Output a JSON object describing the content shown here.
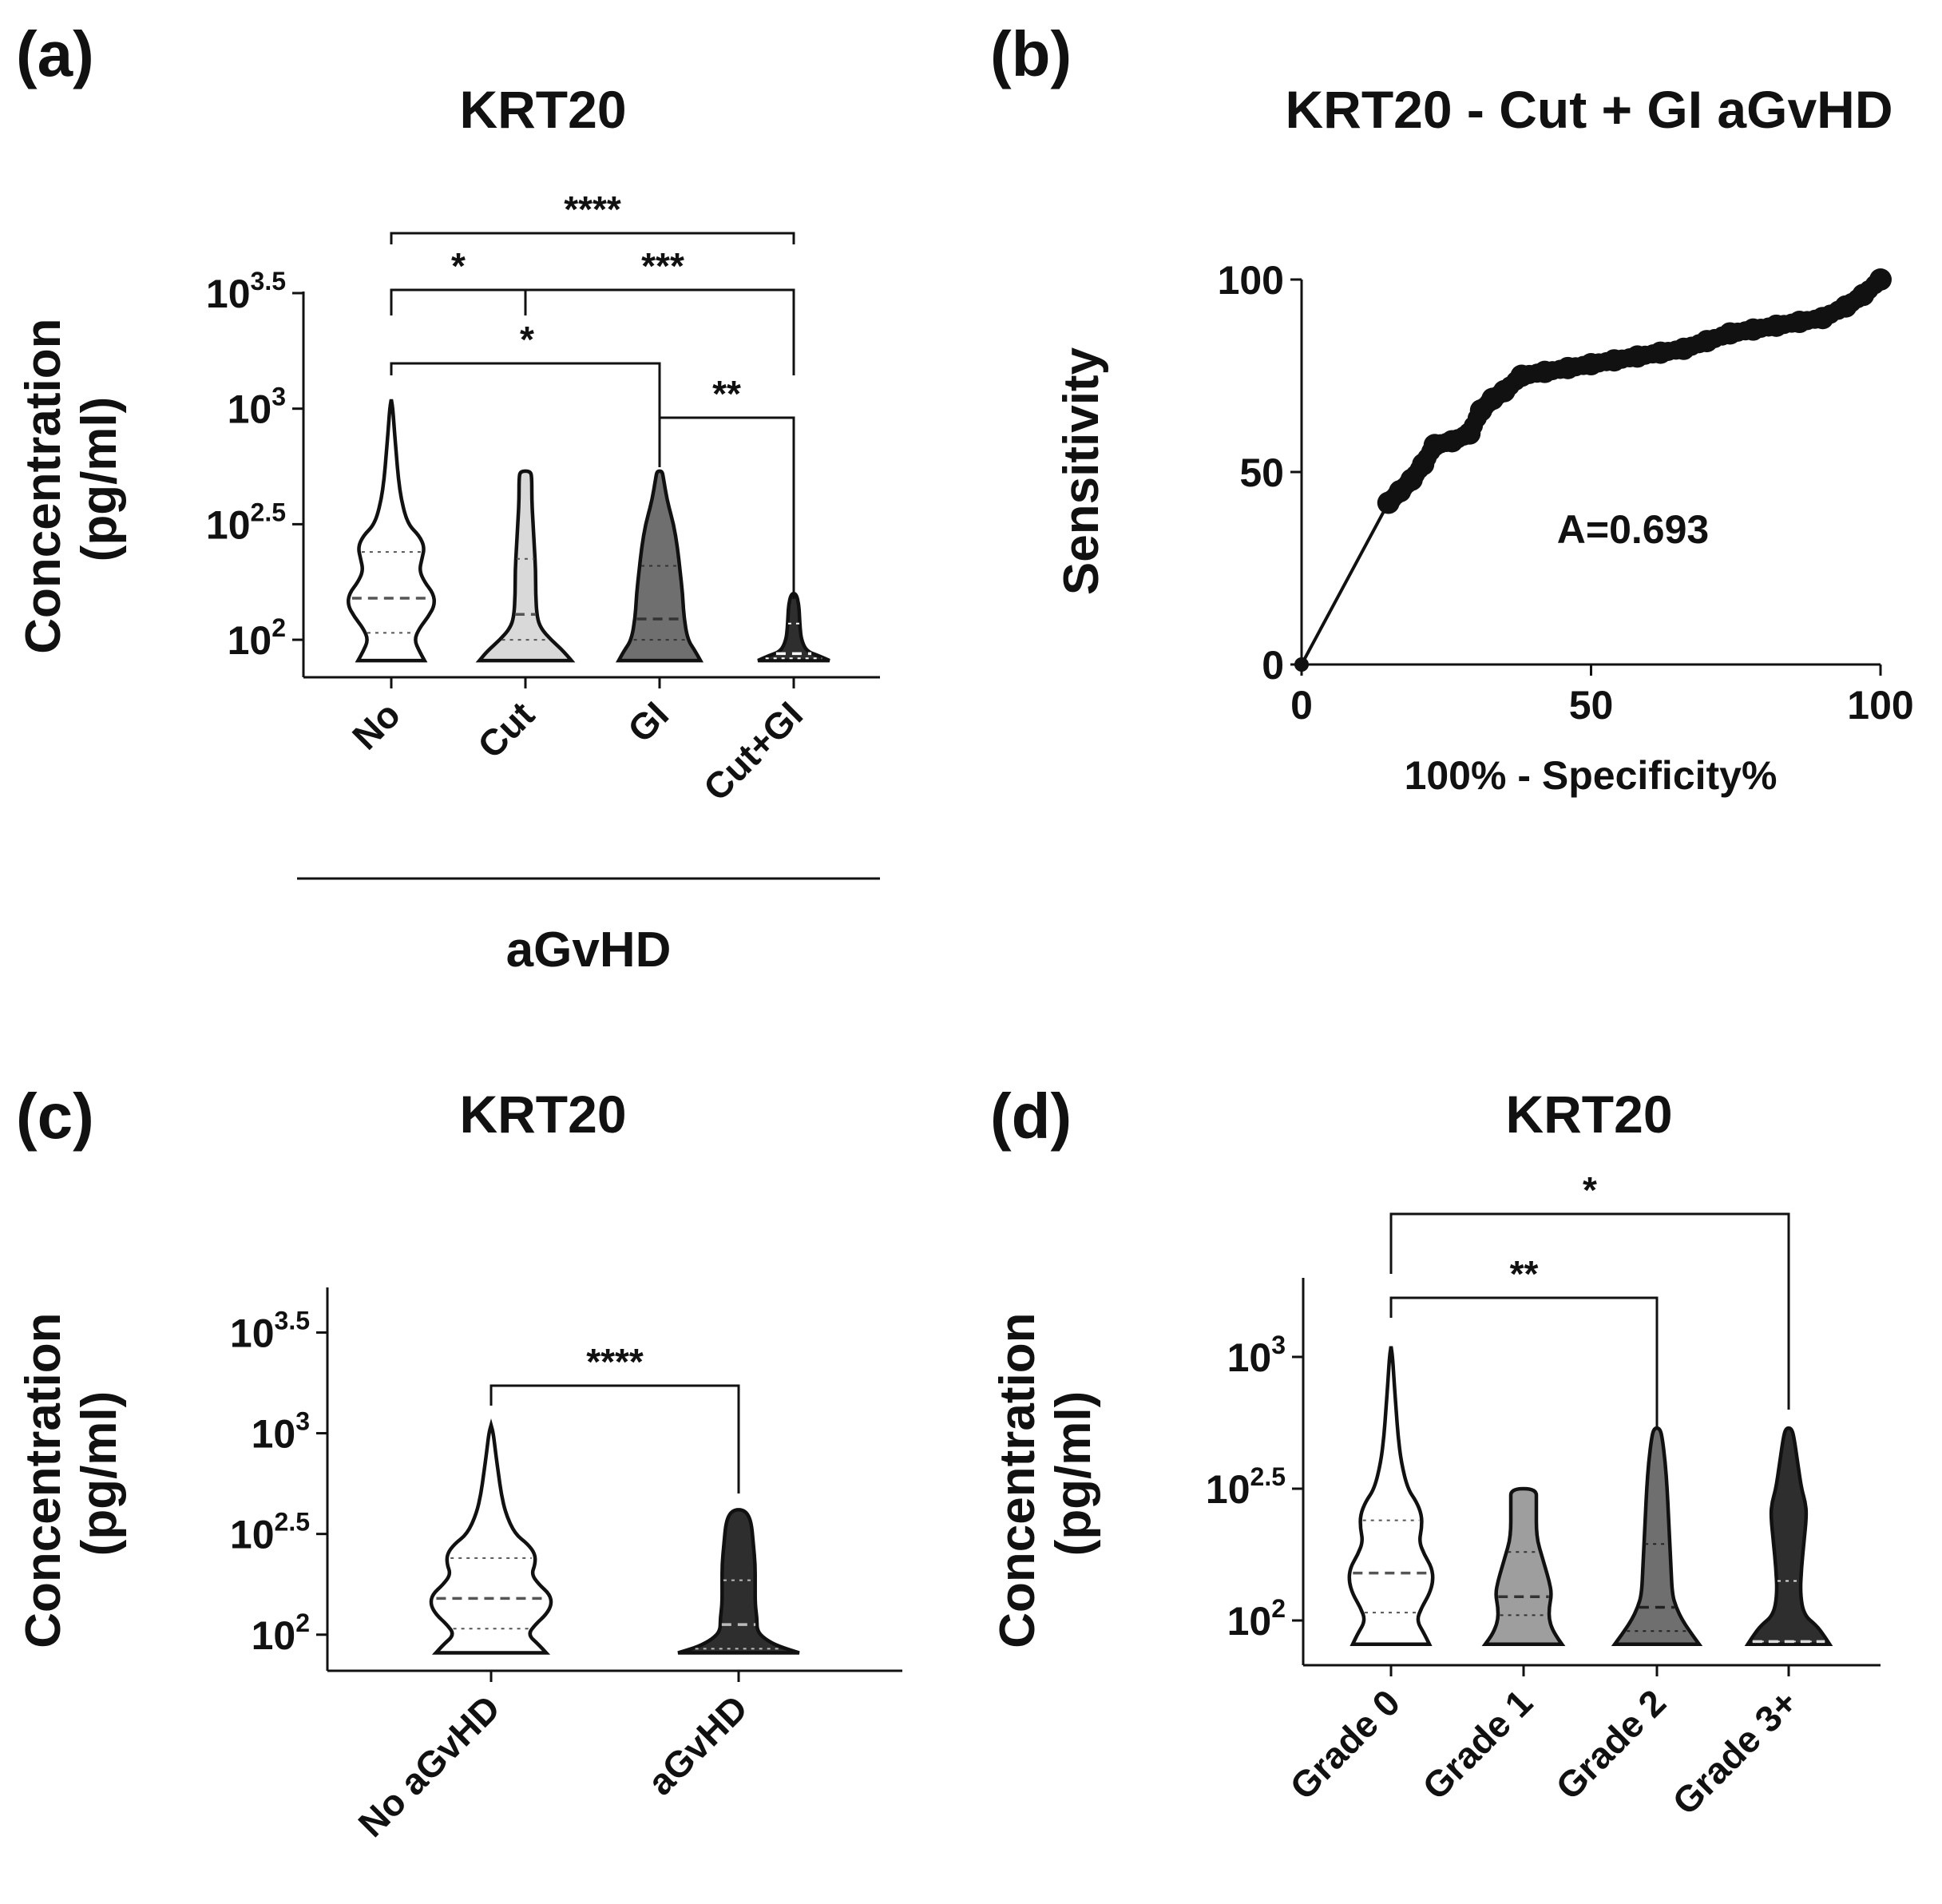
{
  "chart_data": [
    {
      "panel": "(a)",
      "type": "violin",
      "title": "KRT20",
      "ylabel": "Concentration\n(pg/ml)",
      "xlabel": "aGvHD",
      "yscale": "log10",
      "ylim": [
        1.9,
        3.5
      ],
      "yticks": [
        {
          "base": "10",
          "exp": "3.5",
          "value": 3.5
        },
        {
          "base": "10",
          "exp": "3",
          "value": 3.0
        },
        {
          "base": "10",
          "exp": "2.5",
          "value": 2.5
        },
        {
          "base": "10",
          "exp": "2",
          "value": 2.0
        }
      ],
      "categories": [
        "No",
        "Cut",
        "GI",
        "Cut+GI"
      ],
      "violins": [
        {
          "name": "No",
          "fill": "#ffffff",
          "min": 1.91,
          "max": 3.04,
          "q1": 2.03,
          "median": 2.18,
          "q3": 2.38,
          "line_color": "#555555",
          "profile": [
            [
              1.91,
              0.26
            ],
            [
              1.95,
              0.22
            ],
            [
              2.0,
              0.18
            ],
            [
              2.05,
              0.22
            ],
            [
              2.1,
              0.29
            ],
            [
              2.15,
              0.34
            ],
            [
              2.2,
              0.33
            ],
            [
              2.25,
              0.26
            ],
            [
              2.3,
              0.22
            ],
            [
              2.35,
              0.24
            ],
            [
              2.4,
              0.26
            ],
            [
              2.45,
              0.22
            ],
            [
              2.5,
              0.13
            ],
            [
              2.6,
              0.08
            ],
            [
              2.7,
              0.055
            ],
            [
              2.8,
              0.04
            ],
            [
              2.9,
              0.025
            ],
            [
              3.0,
              0.012
            ],
            [
              3.04,
              0
            ]
          ]
        },
        {
          "name": "Cut",
          "fill": "#d9d9d9",
          "min": 1.91,
          "max": 2.73,
          "q1": 2.0,
          "median": 2.11,
          "q3": 2.35,
          "line_color": "#555555",
          "profile": [
            [
              1.91,
              0.36
            ],
            [
              1.95,
              0.3
            ],
            [
              2.0,
              0.2
            ],
            [
              2.05,
              0.12
            ],
            [
              2.1,
              0.09
            ],
            [
              2.2,
              0.08
            ],
            [
              2.3,
              0.08
            ],
            [
              2.4,
              0.07
            ],
            [
              2.5,
              0.06
            ],
            [
              2.6,
              0.05
            ],
            [
              2.7,
              0.05
            ],
            [
              2.73,
              0.04
            ]
          ]
        },
        {
          "name": "GI",
          "fill": "#6f6f6f",
          "min": 1.91,
          "max": 2.73,
          "q1": 2.0,
          "median": 2.09,
          "q3": 2.32,
          "line_color": "#333333",
          "profile": [
            [
              1.91,
              0.32
            ],
            [
              1.95,
              0.28
            ],
            [
              2.0,
              0.22
            ],
            [
              2.1,
              0.19
            ],
            [
              2.2,
              0.18
            ],
            [
              2.3,
              0.16
            ],
            [
              2.4,
              0.14
            ],
            [
              2.5,
              0.11
            ],
            [
              2.6,
              0.06
            ],
            [
              2.7,
              0.03
            ],
            [
              2.73,
              0.02
            ]
          ]
        },
        {
          "name": "Cut+GI",
          "fill": "#2e2e2e",
          "min": 1.91,
          "max": 2.2,
          "q1": 1.92,
          "median": 1.94,
          "q3": 2.07,
          "line_color": "#ffffff",
          "profile": [
            [
              1.91,
              0.28
            ],
            [
              1.93,
              0.2
            ],
            [
              1.95,
              0.1
            ],
            [
              2.0,
              0.06
            ],
            [
              2.05,
              0.05
            ],
            [
              2.1,
              0.045
            ],
            [
              2.15,
              0.04
            ],
            [
              2.2,
              0.02
            ]
          ]
        }
      ],
      "significance": [
        {
          "from": "No",
          "to": "Cut+GI",
          "label": "****"
        },
        {
          "from": "No",
          "to": "Cut",
          "label": "*"
        },
        {
          "from": "Cut",
          "to": "Cut+GI",
          "label": "***"
        },
        {
          "from": "No",
          "to": "GI",
          "label": "*"
        },
        {
          "from": "GI",
          "to": "Cut+GI",
          "label": "**"
        }
      ]
    },
    {
      "panel": "(b)",
      "type": "line",
      "title": "KRT20 - Cut + GI aGvHD",
      "xlabel": "100% - Specificity%",
      "ylabel": "Sensitivity",
      "xlim": [
        0,
        100
      ],
      "ylim": [
        0,
        100
      ],
      "xticks": [
        0,
        50,
        100
      ],
      "yticks": [
        0,
        50,
        100
      ],
      "annotation": "A=0.693",
      "x": [
        0,
        15,
        17,
        19,
        21,
        23,
        26,
        29,
        31,
        33,
        35,
        38,
        42,
        46,
        50,
        54,
        58,
        62,
        66,
        70,
        74,
        78,
        82,
        86,
        90,
        94,
        97,
        100
      ],
      "y": [
        0,
        42,
        45,
        48,
        52,
        57,
        58,
        60,
        66,
        69,
        71,
        75,
        76,
        77,
        78,
        79,
        80,
        81,
        82,
        84,
        86,
        87,
        88,
        89,
        90,
        93,
        96,
        100
      ]
    },
    {
      "panel": "(c)",
      "type": "violin",
      "title": "KRT20",
      "ylabel": "Concentration\n(pg/ml)",
      "yscale": "log10",
      "ylim": [
        1.9,
        3.7
      ],
      "yticks": [
        {
          "base": "10",
          "exp": "3.5",
          "value": 3.5
        },
        {
          "base": "10",
          "exp": "3",
          "value": 3.0
        },
        {
          "base": "10",
          "exp": "2.5",
          "value": 2.5
        },
        {
          "base": "10",
          "exp": "2",
          "value": 2.0
        }
      ],
      "categories": [
        "No aGvHD",
        "aGvHD"
      ],
      "violins": [
        {
          "name": "No aGvHD",
          "fill": "#ffffff",
          "min": 1.91,
          "max": 3.04,
          "q1": 2.03,
          "median": 2.18,
          "q3": 2.38,
          "line_color": "#555555",
          "profile": [
            [
              1.91,
              0.3
            ],
            [
              1.95,
              0.26
            ],
            [
              2.0,
              0.2
            ],
            [
              2.05,
              0.24
            ],
            [
              2.1,
              0.3
            ],
            [
              2.15,
              0.33
            ],
            [
              2.2,
              0.32
            ],
            [
              2.25,
              0.26
            ],
            [
              2.3,
              0.22
            ],
            [
              2.35,
              0.24
            ],
            [
              2.4,
              0.24
            ],
            [
              2.45,
              0.2
            ],
            [
              2.5,
              0.13
            ],
            [
              2.6,
              0.08
            ],
            [
              2.7,
              0.055
            ],
            [
              2.8,
              0.04
            ],
            [
              2.9,
              0.025
            ],
            [
              3.0,
              0.012
            ],
            [
              3.04,
              0
            ]
          ]
        },
        {
          "name": "aGvHD",
          "fill": "#2e2e2e",
          "min": 1.91,
          "max": 2.62,
          "q1": 1.93,
          "median": 2.05,
          "q3": 2.27,
          "line_color": "#bbbbbb",
          "profile": [
            [
              1.91,
              0.33
            ],
            [
              1.94,
              0.22
            ],
            [
              1.98,
              0.14
            ],
            [
              2.02,
              0.1
            ],
            [
              2.08,
              0.1
            ],
            [
              2.15,
              0.09
            ],
            [
              2.25,
              0.09
            ],
            [
              2.35,
              0.09
            ],
            [
              2.45,
              0.08
            ],
            [
              2.55,
              0.07
            ],
            [
              2.6,
              0.05
            ],
            [
              2.62,
              0.02
            ]
          ]
        }
      ],
      "significance": [
        {
          "from": "No aGvHD",
          "to": "aGvHD",
          "label": "****"
        }
      ]
    },
    {
      "panel": "(d)",
      "type": "violin",
      "title": "KRT20",
      "ylabel": "Concentration\n(pg/ml)",
      "yscale": "log10",
      "ylim": [
        1.9,
        3.3
      ],
      "yticks": [
        {
          "base": "10",
          "exp": "3",
          "value": 3.0
        },
        {
          "base": "10",
          "exp": "2.5",
          "value": 2.5
        },
        {
          "base": "10",
          "exp": "2",
          "value": 2.0
        }
      ],
      "categories": [
        "Grade 0",
        "Grade 1",
        "Grade 2",
        "Grade 3+"
      ],
      "violins": [
        {
          "name": "Grade 0",
          "fill": "#ffffff",
          "min": 1.91,
          "max": 3.04,
          "q1": 2.03,
          "median": 2.18,
          "q3": 2.38,
          "line_color": "#555555",
          "profile": [
            [
              1.91,
              0.3
            ],
            [
              1.95,
              0.26
            ],
            [
              2.0,
              0.2
            ],
            [
              2.05,
              0.24
            ],
            [
              2.1,
              0.3
            ],
            [
              2.15,
              0.33
            ],
            [
              2.2,
              0.32
            ],
            [
              2.25,
              0.26
            ],
            [
              2.3,
              0.22
            ],
            [
              2.35,
              0.24
            ],
            [
              2.4,
              0.24
            ],
            [
              2.45,
              0.2
            ],
            [
              2.5,
              0.13
            ],
            [
              2.6,
              0.08
            ],
            [
              2.7,
              0.055
            ],
            [
              2.8,
              0.04
            ],
            [
              2.9,
              0.025
            ],
            [
              3.0,
              0.012
            ],
            [
              3.04,
              0
            ]
          ]
        },
        {
          "name": "Grade 1",
          "fill": "#9e9e9e",
          "min": 1.91,
          "max": 2.5,
          "q1": 2.02,
          "median": 2.09,
          "q3": 2.26,
          "line_color": "#333333",
          "profile": [
            [
              1.91,
              0.3
            ],
            [
              1.95,
              0.24
            ],
            [
              2.0,
              0.2
            ],
            [
              2.05,
              0.2
            ],
            [
              2.1,
              0.22
            ],
            [
              2.15,
              0.2
            ],
            [
              2.2,
              0.17
            ],
            [
              2.25,
              0.14
            ],
            [
              2.3,
              0.11
            ],
            [
              2.35,
              0.1
            ],
            [
              2.4,
              0.1
            ],
            [
              2.45,
              0.1
            ],
            [
              2.5,
              0.1
            ]
          ]
        },
        {
          "name": "Grade 2",
          "fill": "#6f6f6f",
          "min": 1.91,
          "max": 2.73,
          "q1": 1.96,
          "median": 2.05,
          "q3": 2.29,
          "line_color": "#222222",
          "profile": [
            [
              1.91,
              0.33
            ],
            [
              1.95,
              0.27
            ],
            [
              2.0,
              0.2
            ],
            [
              2.05,
              0.15
            ],
            [
              2.1,
              0.12
            ],
            [
              2.2,
              0.11
            ],
            [
              2.3,
              0.1
            ],
            [
              2.4,
              0.09
            ],
            [
              2.5,
              0.08
            ],
            [
              2.6,
              0.065
            ],
            [
              2.7,
              0.04
            ],
            [
              2.73,
              0.02
            ]
          ]
        },
        {
          "name": "Grade 3+",
          "fill": "#2e2e2e",
          "min": 1.91,
          "max": 2.73,
          "q1": 1.92,
          "median": 1.92,
          "q3": 2.15,
          "line_color": "#dddddd",
          "profile": [
            [
              1.91,
              0.32
            ],
            [
              1.94,
              0.28
            ],
            [
              1.98,
              0.22
            ],
            [
              2.02,
              0.12
            ],
            [
              2.1,
              0.09
            ],
            [
              2.2,
              0.1
            ],
            [
              2.3,
              0.12
            ],
            [
              2.4,
              0.14
            ],
            [
              2.45,
              0.13
            ],
            [
              2.5,
              0.1
            ],
            [
              2.6,
              0.07
            ],
            [
              2.7,
              0.04
            ],
            [
              2.73,
              0.02
            ]
          ]
        }
      ],
      "significance": [
        {
          "from": "Grade 0",
          "to": "Grade 3+",
          "label": "*"
        },
        {
          "from": "Grade 0",
          "to": "Grade 2",
          "label": "**"
        }
      ]
    }
  ]
}
